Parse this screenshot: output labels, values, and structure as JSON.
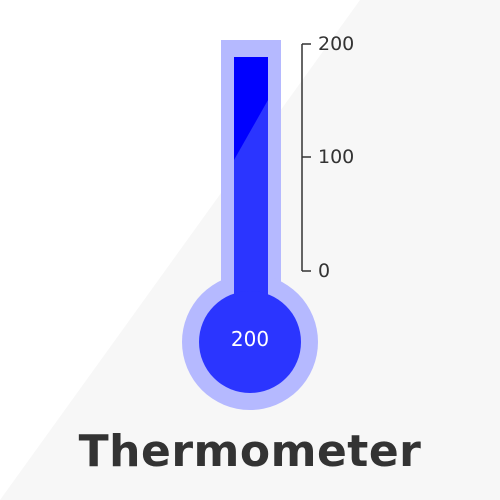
{
  "title": "Thermometer",
  "gauge": {
    "value": 200,
    "value_label": "200",
    "min": 0,
    "max": 200,
    "scale_labels": {
      "max": "200",
      "mid": "100",
      "min": "0"
    }
  },
  "colors": {
    "fill": "#2b35ff",
    "fill_top": "#0000ff",
    "tube_outer": "#b5b9ff",
    "text": "#333333",
    "value_text": "#ffffff",
    "background_accent": "#f7f7f7"
  }
}
